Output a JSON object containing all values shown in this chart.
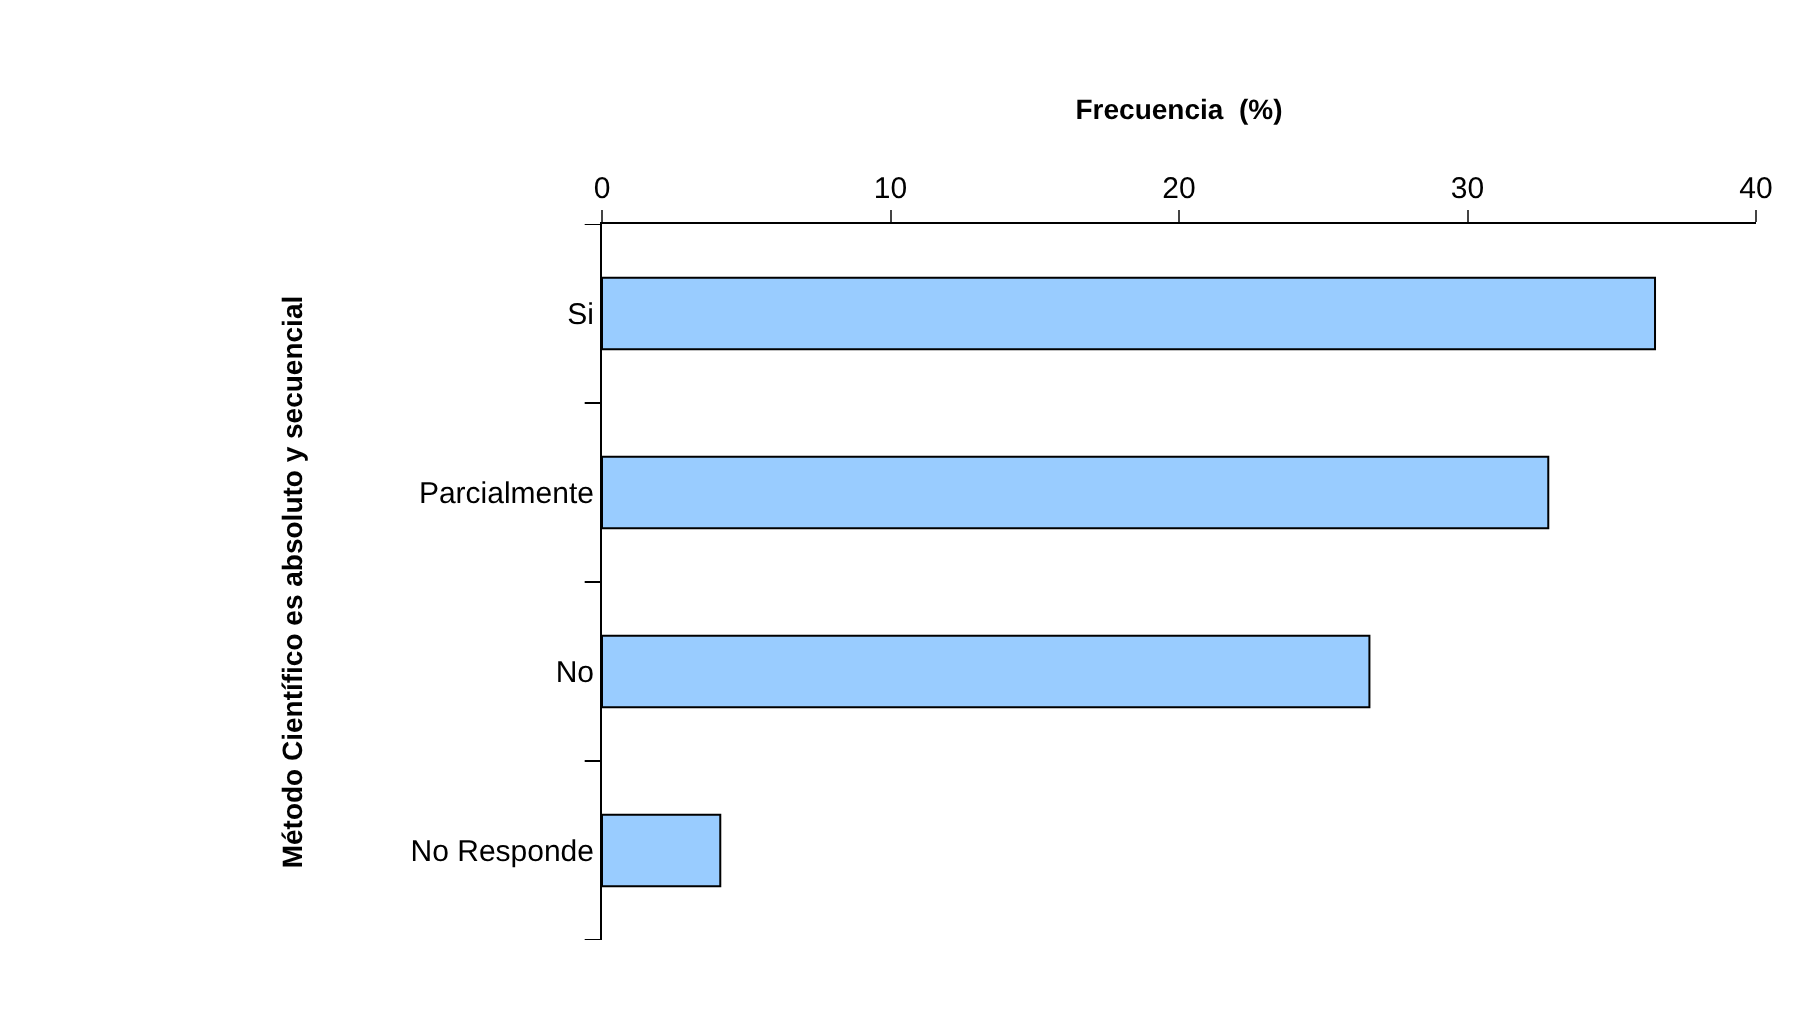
{
  "chart_data": {
    "type": "bar",
    "orientation": "horizontal",
    "xlabel": "Frecuencia  (%)",
    "ylabel": "Método Científico es absoluto y secuencial",
    "categories": [
      "Si",
      "Parcialmente",
      "No",
      "No Responde"
    ],
    "values": [
      36.5,
      32.8,
      26.6,
      4.1
    ],
    "color": "#99ccff",
    "xlim": [
      0,
      40
    ],
    "xticks": [
      0,
      10,
      20,
      30,
      40
    ]
  }
}
